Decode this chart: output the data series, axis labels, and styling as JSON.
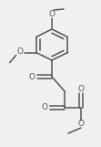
{
  "bg_color": "#f0f0f0",
  "line_color": "#555555",
  "line_width": 1.1,
  "figsize": [
    1.11,
    1.61
  ],
  "dpi": 100,
  "xlim": [
    0,
    111
  ],
  "ylim": [
    0,
    161
  ]
}
